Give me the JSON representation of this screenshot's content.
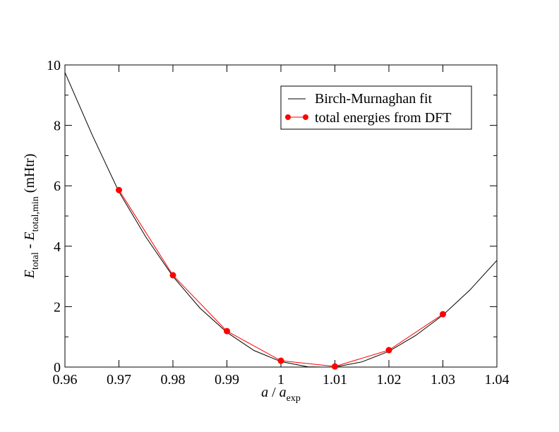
{
  "chart_data": {
    "type": "line",
    "title": "",
    "xlabel": {
      "main": "a",
      "sep": " / ",
      "base": "a",
      "sub": "exp"
    },
    "ylabel": {
      "e1": "E",
      "sub1": "total",
      "mid": " - ",
      "e2": "E",
      "sub2": "total,min",
      "unit": " (mHtr)"
    },
    "xlim": [
      0.96,
      1.04
    ],
    "ylim": [
      0,
      10
    ],
    "x_ticks": [
      "0.96",
      "0.97",
      "0.98",
      "0.99",
      "1",
      "1.01",
      "1.02",
      "1.03",
      "1.04"
    ],
    "y_ticks": [
      "0",
      "2",
      "4",
      "6",
      "8",
      "10"
    ],
    "y_minor_step": 1,
    "grid": false,
    "legend_placement": "top-right",
    "series": [
      {
        "name": "Birch-Murnaghan fit",
        "color": "#000000",
        "marker": "none",
        "x": [
          0.96,
          0.965,
          0.97,
          0.975,
          0.98,
          0.985,
          0.99,
          0.995,
          1.0,
          1.005,
          1.0076,
          1.01,
          1.015,
          1.02,
          1.025,
          1.03,
          1.035,
          1.04
        ],
        "y": [
          9.75,
          7.7,
          5.8,
          4.3,
          3.0,
          1.95,
          1.15,
          0.55,
          0.18,
          0.01,
          0.0,
          0.0,
          0.17,
          0.52,
          1.05,
          1.72,
          2.55,
          3.53
        ]
      },
      {
        "name": "total energies from DFT",
        "color": "#ff0000",
        "marker": "circle",
        "x": [
          0.97,
          0.98,
          0.99,
          1.0,
          1.01,
          1.02,
          1.03
        ],
        "y": [
          5.86,
          3.04,
          1.19,
          0.21,
          0.02,
          0.56,
          1.75
        ]
      }
    ]
  }
}
